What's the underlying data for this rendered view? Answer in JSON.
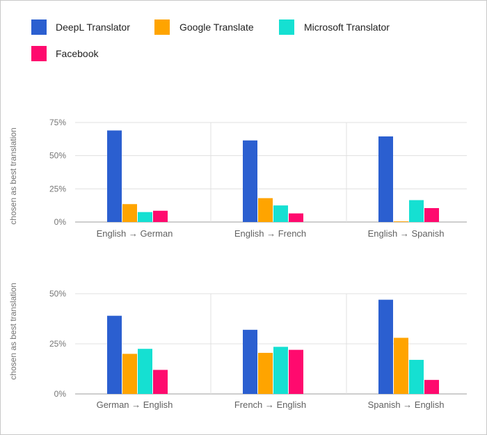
{
  "legend": [
    {
      "name": "DeepL Translator",
      "color": "#2b5fd0"
    },
    {
      "name": "Google Translate",
      "color": "#ffa400"
    },
    {
      "name": "Microsoft Translator",
      "color": "#15e0d2"
    },
    {
      "name": "Facebook",
      "color": "#ff0a6e"
    }
  ],
  "chart_data": [
    {
      "type": "bar",
      "ylabel": "chosen as best translation",
      "ylim": [
        0,
        75
      ],
      "yticks": [
        "0%",
        "25%",
        "50%",
        "75%"
      ],
      "grid": true,
      "series": [
        "DeepL Translator",
        "Google Translate",
        "Microsoft Translator",
        "Facebook"
      ],
      "panels": [
        {
          "category": "English → German",
          "values": [
            69,
            13.5,
            7.5,
            8.5
          ]
        },
        {
          "category": "English → French",
          "values": [
            61.5,
            18,
            12.5,
            6.5
          ]
        },
        {
          "category": "English → Spanish",
          "values": [
            64.5,
            0.5,
            16.5,
            10.5
          ]
        }
      ]
    },
    {
      "type": "bar",
      "ylabel": "chosen as best translation",
      "ylim": [
        0,
        50
      ],
      "yticks": [
        "0%",
        "25%",
        "50%"
      ],
      "grid": true,
      "series": [
        "DeepL Translator",
        "Google Translate",
        "Microsoft Translator",
        "Facebook"
      ],
      "panels": [
        {
          "category": "German → English",
          "values": [
            39,
            20,
            22.5,
            12
          ]
        },
        {
          "category": "French → English",
          "values": [
            32,
            20.5,
            23.5,
            22
          ]
        },
        {
          "category": "Spanish → English",
          "values": [
            47,
            28,
            17,
            7
          ]
        }
      ]
    }
  ]
}
